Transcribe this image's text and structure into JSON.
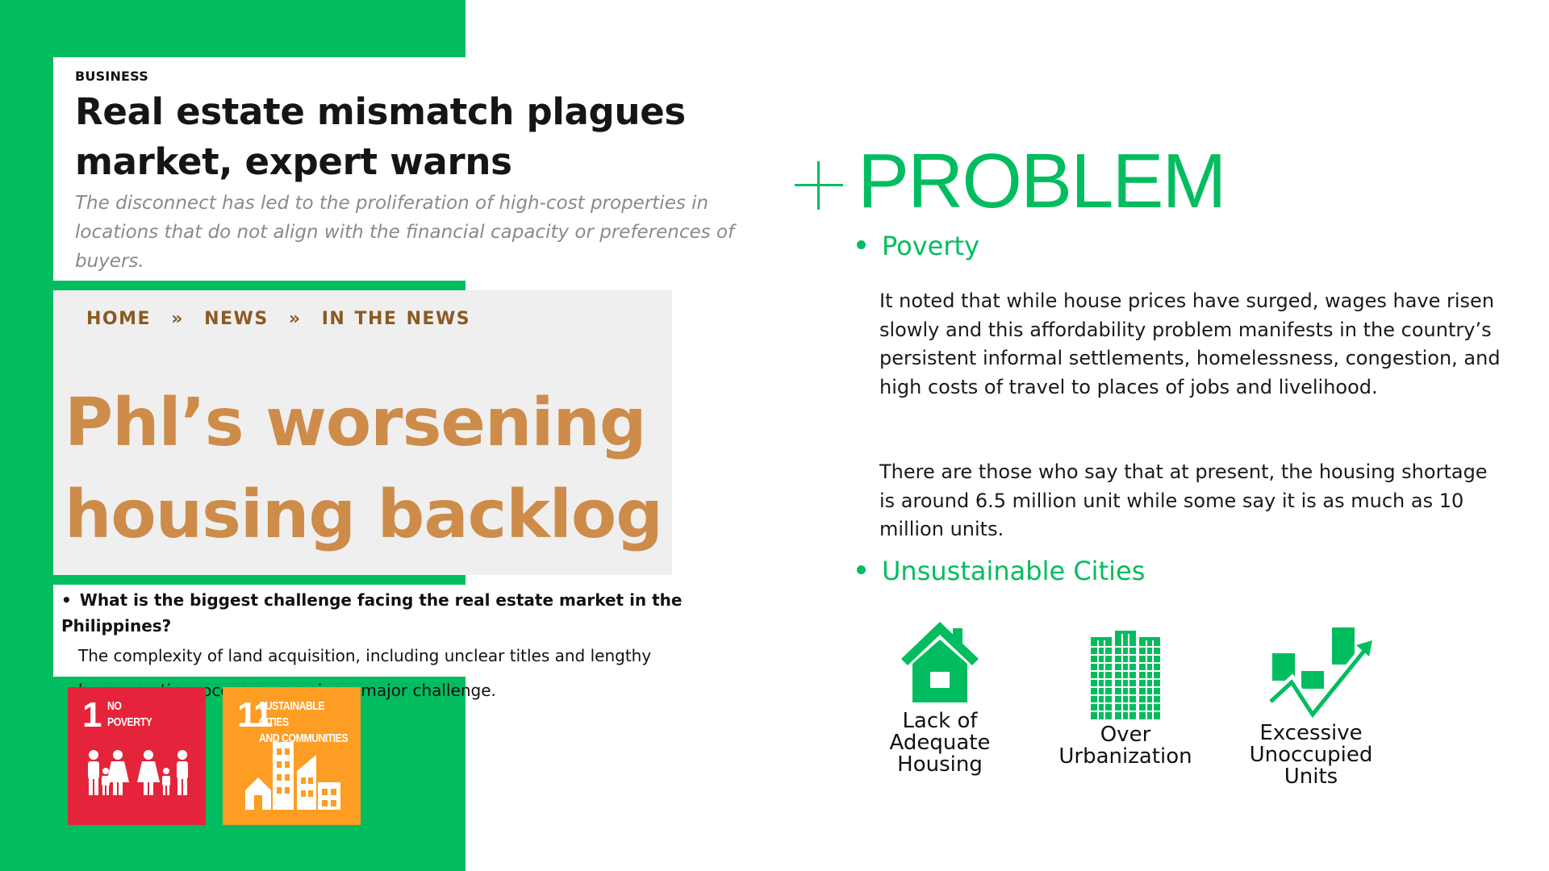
{
  "clip1": {
    "kicker": "BUSINESS",
    "headline": "Real estate mismatch plagues market, expert warns",
    "deck": "The disconnect has led to the proliferation of high-cost properties in locations that do not align with the financial capacity or preferences of buyers."
  },
  "clip2": {
    "breadcrumb": [
      "HOME",
      "»",
      "NEWS",
      "»",
      "IN THE NEWS"
    ],
    "headline": "Phl’s worsening housing backlog"
  },
  "clip3": {
    "question": "What is the biggest challenge facing the real estate market in the Philippines?",
    "answer": "The complexity of land acquisition, including unclear titles and lengthy bureaucratic processes, remains a major challenge."
  },
  "sdg": [
    {
      "number": "1",
      "label_line1": "NO",
      "label_line2": "POVERTY",
      "color": "#e5243b",
      "icon": "family-icon"
    },
    {
      "number": "11",
      "label_line1": "SUSTAINABLE CITIES",
      "label_line2": "AND COMMUNITIES",
      "color": "#fd9d24",
      "icon": "city-buildings-icon"
    }
  ],
  "problem": {
    "title": "PROBLEM",
    "accent_color": "#02bd5f",
    "poverty": {
      "heading": "Poverty",
      "paragraph1": "It noted that while house prices have surged, wages have risen slowly and this affordability problem manifests in the country’s persistent informal settlements, homelessness, congestion, and high costs of travel to places of jobs and livelihood.",
      "paragraph2": "There are those who say that at present, the housing shortage is around 6.5 million unit while some say it is as much as 10 million units."
    },
    "cities": {
      "heading": "Unsustainable Cities",
      "issues": [
        {
          "line1": "Lack of",
          "line2": "Adequate",
          "line3": "Housing",
          "icon": "house-icon"
        },
        {
          "line1": "Over",
          "line2": "Urbanization",
          "icon": "skyscrapers-icon"
        },
        {
          "line1": "Excessive",
          "line2": "Unoccupied",
          "line3": "Units",
          "icon": "rising-chart-icon"
        }
      ]
    }
  }
}
